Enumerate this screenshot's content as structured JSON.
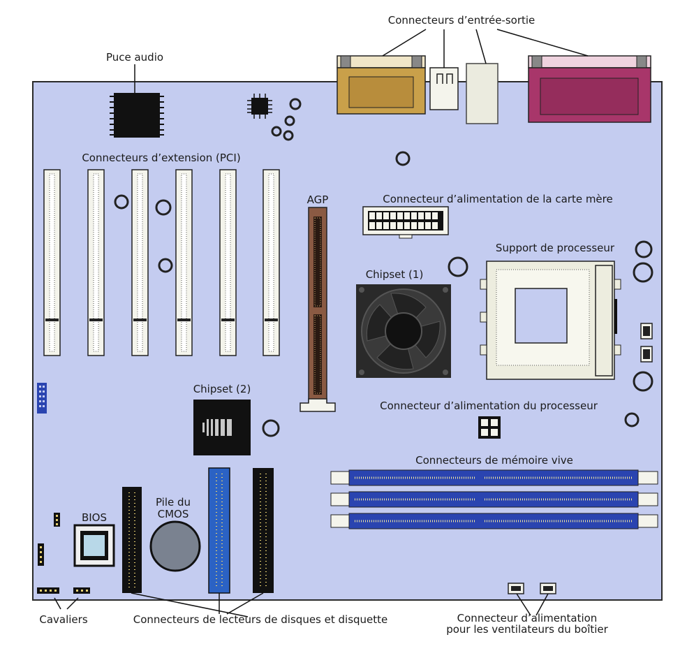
{
  "labels": {
    "io_connectors": "Connecteurs d’entrée-sortie",
    "audio_chip": "Puce audio",
    "pci_slots": "Connecteurs d’extension (PCI)",
    "agp": "AGP",
    "mb_power": "Connecteur d’alimentation de la carte mère",
    "cpu_socket": "Support de processeur",
    "chipset1": "Chipset (1)",
    "chipset2": "Chipset (2)",
    "cpu_power": "Connecteur d’alimentation du processeur",
    "ram_slots": "Connecteurs de mémoire vive",
    "cmos_battery_line1": "Pile du",
    "cmos_battery_line2": "CMOS",
    "bios": "BIOS",
    "jumpers": "Cavaliers",
    "drive_connectors": "Connecteurs de lecteurs de disques et disquette",
    "fan_power_line1": "Connecteur d’alimentation",
    "fan_power_line2": "pour les ventilateurs du boîtier"
  },
  "colors": {
    "board": "#c4ccf0",
    "board_edge": "#2a2a2a",
    "serial_port": "#c9a04a",
    "parallel_port": "#a8366a",
    "ide_blue": "#2b62c4",
    "ram_blue": "#2a44b0",
    "agp_brown": "#8a5a43",
    "battery": "#7a8290",
    "chip_black": "#111111"
  }
}
